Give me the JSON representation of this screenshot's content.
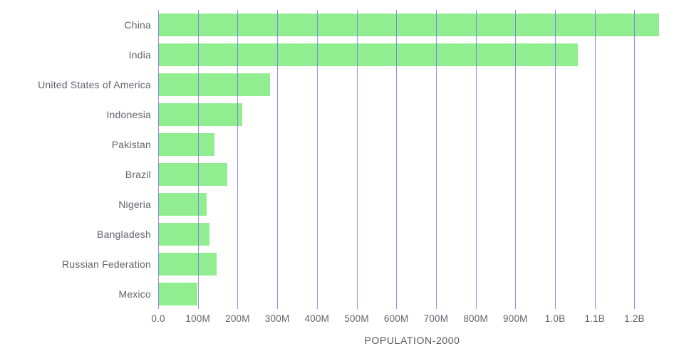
{
  "chart_data": {
    "type": "bar",
    "orientation": "horizontal",
    "title": "POPULATION-2000",
    "categories": [
      "China",
      "India",
      "United States of America",
      "Indonesia",
      "Pakistan",
      "Brazil",
      "Nigeria",
      "Bangladesh",
      "Russian Federation",
      "Mexico"
    ],
    "values": [
      1262645000,
      1056576000,
      282162000,
      211514000,
      142344000,
      174790000,
      122284000,
      129193000,
      146597000,
      97873000
    ],
    "x_axis": {
      "min": 0,
      "max": 1280000000,
      "ticks": [
        {
          "label": "0.0",
          "value": 0
        },
        {
          "label": "100M",
          "value": 100000000
        },
        {
          "label": "200M",
          "value": 200000000
        },
        {
          "label": "300M",
          "value": 300000000
        },
        {
          "label": "400M",
          "value": 400000000
        },
        {
          "label": "500M",
          "value": 500000000
        },
        {
          "label": "600M",
          "value": 600000000
        },
        {
          "label": "700M",
          "value": 700000000
        },
        {
          "label": "800M",
          "value": 800000000
        },
        {
          "label": "900M",
          "value": 900000000
        },
        {
          "label": "1.0B",
          "value": 1000000000
        },
        {
          "label": "1.1B",
          "value": 1100000000
        },
        {
          "label": "1.2B",
          "value": 1200000000
        }
      ]
    },
    "grid": true,
    "legend": "none",
    "colors": {
      "bar": "#90ee90",
      "gridline": "#7b68ee",
      "label_text": "#63636e",
      "tick_text": "#63636e",
      "title_text": "#55555f",
      "background": "#ffffff"
    }
  }
}
